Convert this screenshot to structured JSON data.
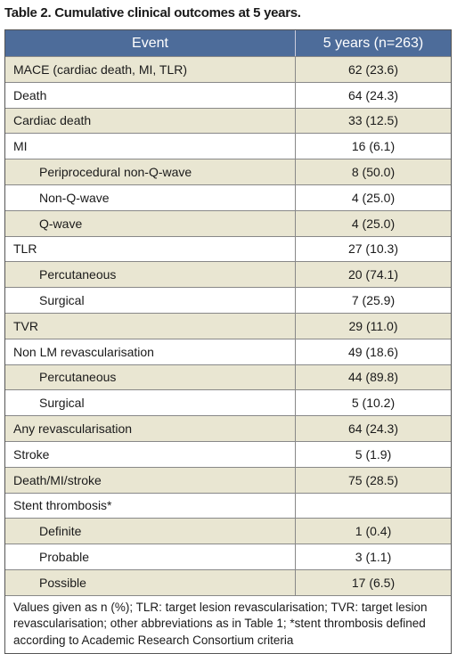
{
  "title": "Table 2. Cumulative clinical outcomes at 5 years.",
  "table": {
    "header": [
      "Event",
      "5 years (n=263)"
    ],
    "rows": [
      {
        "event": "MACE (cardiac death, MI, TLR)",
        "value": "62 (23.6)"
      },
      {
        "event": "Death",
        "value": "64 (24.3)"
      },
      {
        "event": "Cardiac death",
        "value": "33 (12.5)"
      },
      {
        "event": "MI",
        "value": "16 (6.1)",
        "items": [
          {
            "event": "Periprocedural non-Q-wave",
            "value": "8 (50.0)"
          },
          {
            "event": "Non-Q-wave",
            "value": "4 (25.0)"
          },
          {
            "event": "Q-wave",
            "value": "4 (25.0)"
          }
        ]
      },
      {
        "event": "TLR",
        "value": "27 (10.3)",
        "items": [
          {
            "event": "Percutaneous",
            "value": "20 (74.1)"
          },
          {
            "event": "Surgical",
            "value": "7 (25.9)"
          }
        ]
      },
      {
        "event": "TVR",
        "value": "29 (11.0)"
      },
      {
        "event": "Non LM revascularisation",
        "value": "49 (18.6)",
        "items": [
          {
            "event": "Percutaneous",
            "value": "44 (89.8)"
          },
          {
            "event": "Surgical",
            "value": "5 (10.2)"
          }
        ]
      },
      {
        "event": "Any revascularisation",
        "value": "64 (24.3)"
      },
      {
        "event": "Stroke",
        "value": "5 (1.9)"
      },
      {
        "event": "Death/MI/stroke",
        "value": "75 (28.5)"
      },
      {
        "event": "Stent thrombosis*",
        "items": [
          {
            "event": "Definite",
            "value": "1 (0.4)"
          },
          {
            "event": "Probable",
            "value": "3 (1.1)"
          },
          {
            "event": "Possible",
            "value": "17 (6.5)"
          }
        ]
      }
    ]
  },
  "footnote": "Values given as n (%); TLR: target lesion revascularisation; TVR: target lesion revascularisation; other abbreviations as in Table 1; *stent thrombosis defined according to Academic Research Consortium criteria"
}
